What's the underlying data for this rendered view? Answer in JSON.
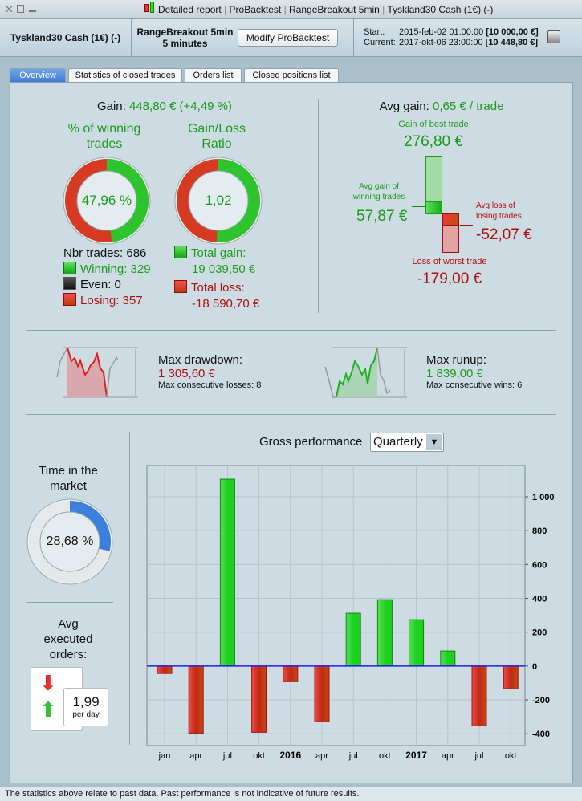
{
  "window": {
    "title_parts": [
      "Detailed report",
      "ProBacktest",
      "RangeBreakout 5min",
      "Tyskland30 Cash (1€) (-)"
    ],
    "separator": "|"
  },
  "header": {
    "instrument": "Tyskland30 Cash (1€) (-)",
    "strategy": "RangeBreakout 5min",
    "timeframe": "5 minutes",
    "modify_label": "Modify ProBacktest",
    "start_label": "Start:",
    "start_date": "2015-feb-02 01:00:00",
    "start_capital": "[10 000,00 €]",
    "current_label": "Current:",
    "current_date": "2017-okt-06 23:00:00",
    "current_capital": "[10 448,80 €]"
  },
  "tabs": [
    {
      "label": "Overview",
      "active": true
    },
    {
      "label": "Statistics of closed trades"
    },
    {
      "label": "Orders list"
    },
    {
      "label": "Closed positions list"
    }
  ],
  "gain": {
    "label": "Gain:",
    "value": "448,80 € (+4,49 %)"
  },
  "winning": {
    "title_1": "% of winning",
    "title_2": "trades",
    "value": "47,96 %",
    "percent": 47.96,
    "nbr_trades": "Nbr trades: 686",
    "winning": "Winning: 329",
    "even": "Even: 0",
    "losing": "Losing: 357"
  },
  "ratio": {
    "title_1": "Gain/Loss",
    "title_2": "Ratio",
    "value": "1,02",
    "total_gain_label": "Total gain:",
    "total_gain": "19 039,50 €",
    "total_loss_label": "Total loss:",
    "total_loss": "-18 590,70 €"
  },
  "avg": {
    "label": "Avg gain:",
    "value": "0,65 € / trade",
    "best_label": "Gain of best trade",
    "best": "276,80 €",
    "avg_win_label_1": "Avg gain of",
    "avg_win_label_2": "winning trades",
    "avg_win": "57,87 €",
    "avg_loss_label_1": "Avg loss of",
    "avg_loss_label_2": "losing trades",
    "avg_loss": "-52,07 €",
    "worst_label": "Loss of worst trade",
    "worst": "-179,00 €"
  },
  "drawdown": {
    "label": "Max drawdown:",
    "value": "1 305,60 €",
    "sub": "Max consecutive losses: 8"
  },
  "runup": {
    "label": "Max runup:",
    "value": "1 839,00 €",
    "sub": "Max consecutive wins: 6"
  },
  "time_in_market": {
    "title_1": "Time in the",
    "title_2": "market",
    "value": "28,68 %",
    "percent": 28.68
  },
  "orders": {
    "title_1": "Avg",
    "title_2": "executed",
    "title_3": "orders:",
    "value": "1,99",
    "unit": "per day"
  },
  "performance": {
    "label": "Gross performance",
    "period": "Quarterly"
  },
  "chart_data": {
    "type": "bar",
    "categories": [
      "jan",
      "apr",
      "jul",
      "okt",
      "2016",
      "apr",
      "jul",
      "okt",
      "2017",
      "apr",
      "jul",
      "okt"
    ],
    "values": [
      -44,
      -396,
      1104,
      -391,
      -92,
      -329,
      312,
      392,
      274,
      89,
      -353,
      -134
    ],
    "yticks": [
      -400,
      -200,
      0,
      200,
      400,
      600,
      800,
      1000
    ],
    "ytick_labels": [
      "-400",
      "-200",
      "0",
      "200",
      "400",
      "600",
      "800",
      "1 000"
    ],
    "ylim": [
      -470,
      1185
    ],
    "grid": true,
    "colors": {
      "positive": "#22cc22",
      "negative": "#d83a2a",
      "zero_line": "#2020e0"
    }
  },
  "status": "The statistics above relate to past data. Past performance is not indicative of future results."
}
